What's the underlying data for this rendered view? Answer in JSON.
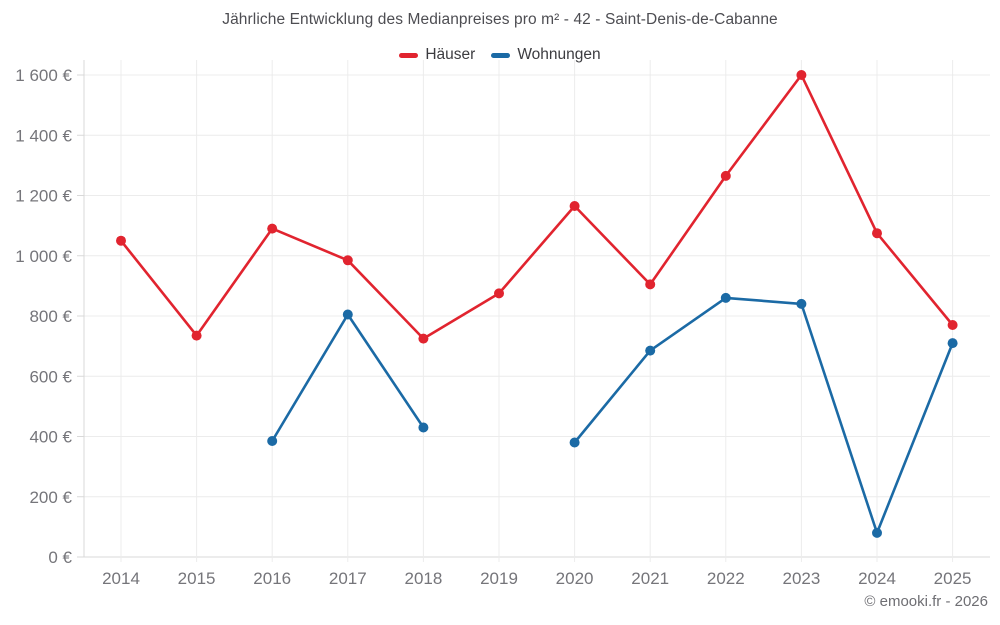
{
  "title": "Jährliche Entwicklung des Medianpreises pro m² - 42 - Saint-Denis-de-Cabanne",
  "footer": "© emooki.fr - 2026",
  "chart_data": {
    "type": "line",
    "title": "Jährliche Entwicklung des Medianpreises pro m² - 42 - Saint-Denis-de-Cabanne",
    "x": [
      "2014",
      "2015",
      "2016",
      "2017",
      "2018",
      "2019",
      "2020",
      "2021",
      "2022",
      "2023",
      "2024",
      "2025"
    ],
    "series": [
      {
        "name": "Häuser",
        "color": "#e1242f",
        "values": [
          1050,
          735,
          1090,
          985,
          725,
          875,
          1165,
          905,
          1265,
          1600,
          1075,
          770
        ]
      },
      {
        "name": "Wohnungen",
        "color": "#1b6aa5",
        "values": [
          null,
          null,
          385,
          805,
          430,
          null,
          380,
          685,
          860,
          840,
          80,
          710
        ]
      }
    ],
    "ylim": [
      0,
      1600
    ],
    "yticks": [
      0,
      200,
      400,
      600,
      800,
      1000,
      1200,
      1400,
      1600
    ],
    "ytick_labels": [
      "0 €",
      "200 €",
      "400 €",
      "600 €",
      "800 €",
      "1 000 €",
      "1 200 €",
      "1 400 €",
      "1 600 €"
    ],
    "ylabel": "",
    "xlabel": "",
    "grid": true,
    "legend_position": "top",
    "marker": "circle"
  }
}
